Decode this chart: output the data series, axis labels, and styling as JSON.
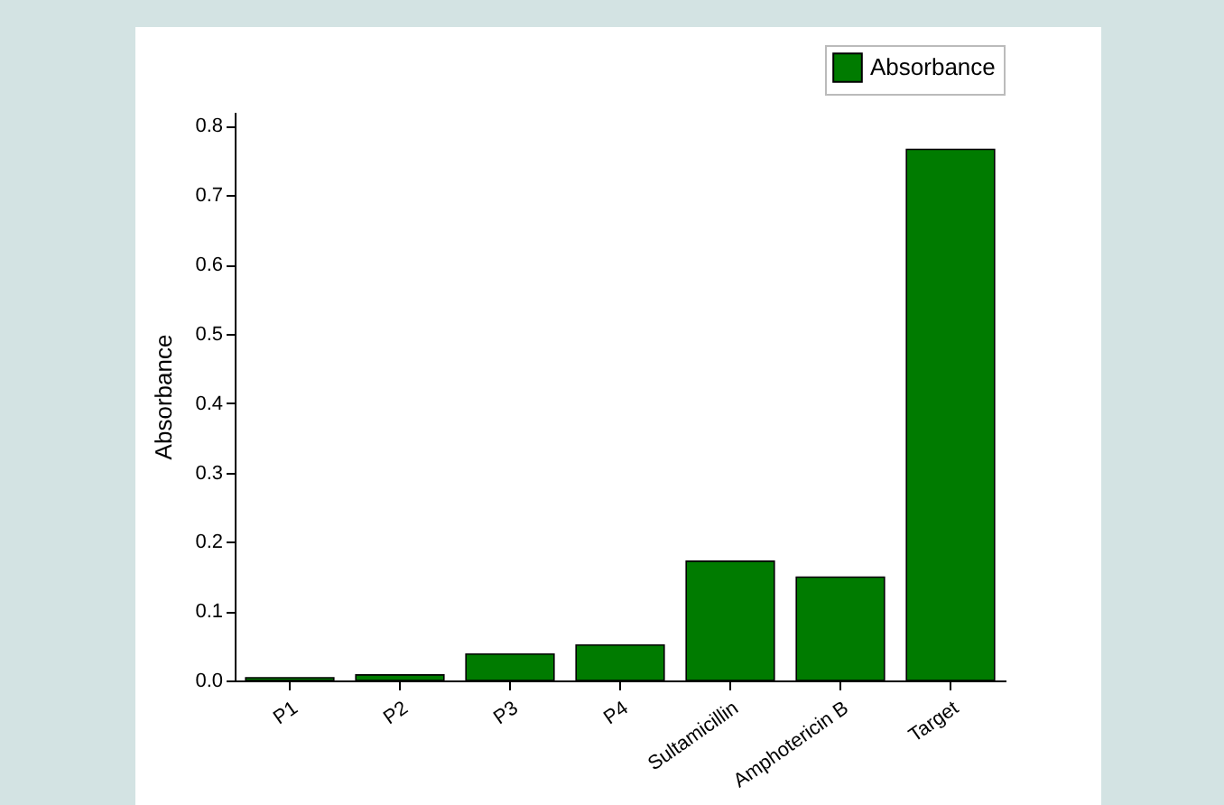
{
  "chart_data": {
    "type": "bar",
    "ylabel": "Absorbance",
    "categories": [
      "P1",
      "P2",
      "P3",
      "P4",
      "Sultamicillin",
      "Amphotericin B",
      "Target"
    ],
    "series": [
      {
        "name": "Absorbance",
        "color": "#007b00",
        "values": [
          0.004,
          0.008,
          0.038,
          0.051,
          0.172,
          0.149,
          0.766
        ]
      }
    ],
    "ylim": [
      0,
      0.82
    ],
    "yticks": [
      {
        "value": 0,
        "label": "0.0"
      },
      0.1,
      0.2,
      0.3,
      0.4,
      0.5,
      0.6,
      0.7,
      0.8
    ],
    "grid": false,
    "legend": "top right"
  }
}
